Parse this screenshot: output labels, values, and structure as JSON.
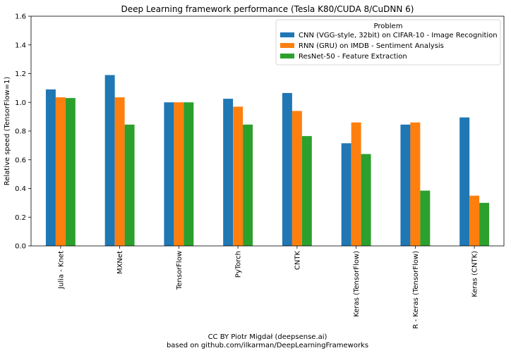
{
  "chart_data": {
    "type": "bar",
    "title": "Deep Learning framework performance (Tesla K80/CUDA 8/CuDNN 6)",
    "xlabel": "",
    "ylabel": "Relative speed (TensorFlow=1)",
    "ylim": [
      0,
      1.6
    ],
    "yticks": [
      "0.0",
      "0.2",
      "0.4",
      "0.6",
      "0.8",
      "1.0",
      "1.2",
      "1.4",
      "1.6"
    ],
    "grid": false,
    "legend_title": "Problem",
    "legend_position": "top-right",
    "categories": [
      "Julia - Knet",
      "MXNet",
      "TensorFlow",
      "PyTorch",
      "CNTK",
      "Keras (TensorFlow)",
      "R - Keras (TensorFlow)",
      "Keras (CNTK)"
    ],
    "series": [
      {
        "name": "CNN (VGG-style, 32bit) on CIFAR-10 - Image Recognition",
        "color": "#1f77b4",
        "values": [
          1.09,
          1.19,
          1.0,
          1.025,
          1.065,
          0.715,
          0.845,
          0.895
        ]
      },
      {
        "name": "RNN (GRU) on IMDB - Sentiment Analysis",
        "color": "#ff7f0e",
        "values": [
          1.035,
          1.035,
          1.0,
          0.97,
          0.94,
          0.86,
          0.86,
          0.35
        ]
      },
      {
        "name": "ResNet-50 - Feature Extraction",
        "color": "#2ca02c",
        "values": [
          1.03,
          0.845,
          1.0,
          0.845,
          0.765,
          0.64,
          0.385,
          0.3
        ]
      }
    ]
  },
  "footer": {
    "line1": "CC BY Piotr Migdał (deepsense.ai)",
    "line2": "based on github.com/ilkarman/DeepLearningFrameworks"
  }
}
